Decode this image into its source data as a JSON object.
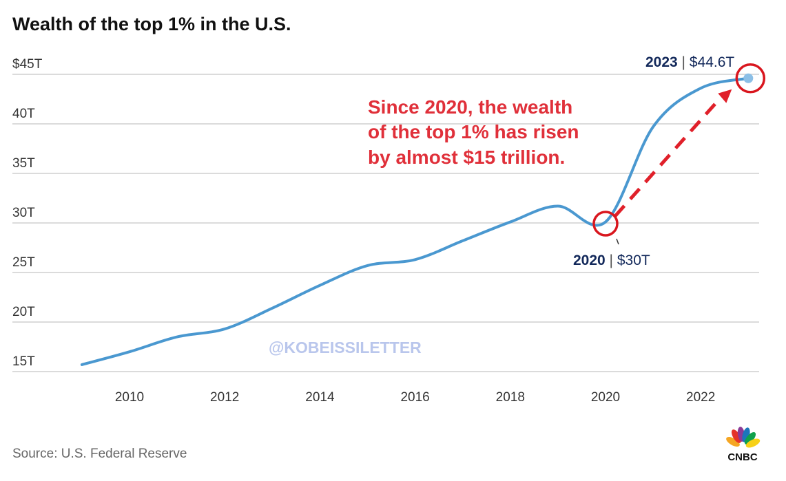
{
  "chart_data": {
    "type": "line",
    "title": "Wealth of the top 1% in the U.S.",
    "xlabel": "",
    "ylabel": "",
    "x": [
      2009,
      2010,
      2011,
      2012,
      2013,
      2014,
      2015,
      2016,
      2017,
      2018,
      2019,
      2020,
      2021,
      2022,
      2023
    ],
    "series": [
      {
        "name": "Wealth of the top 1%",
        "values": [
          15.7,
          17.0,
          18.5,
          19.3,
          21.4,
          23.7,
          25.7,
          26.3,
          28.2,
          30.1,
          31.7,
          30.1,
          39.7,
          43.6,
          44.6
        ],
        "color": "#4a98d0"
      }
    ],
    "xlim": [
      2009,
      2023
    ],
    "ylim": [
      15,
      45
    ],
    "x_ticks": [
      {
        "value": 2010,
        "label": "2010"
      },
      {
        "value": 2012,
        "label": "2012"
      },
      {
        "value": 2014,
        "label": "2014"
      },
      {
        "value": 2016,
        "label": "2016"
      },
      {
        "value": 2018,
        "label": "2018"
      },
      {
        "value": 2020,
        "label": "2020"
      },
      {
        "value": 2022,
        "label": "2022"
      }
    ],
    "y_ticks": [
      {
        "value": 15,
        "label": "15T"
      },
      {
        "value": 20,
        "label": "20T"
      },
      {
        "value": 25,
        "label": "25T"
      },
      {
        "value": 30,
        "label": "30T"
      },
      {
        "value": 35,
        "label": "35T"
      },
      {
        "value": 40,
        "label": "40T"
      },
      {
        "value": 45,
        "label": "$45T"
      }
    ],
    "grid": true,
    "annotations": {
      "start": {
        "year": "2020",
        "value": "$30T",
        "x": 2020,
        "y": 30
      },
      "end": {
        "year": "2023",
        "value": "$44.6T",
        "x": 2023,
        "y": 44.6
      },
      "callout_lines": [
        "Since 2020, the wealth",
        "of the top 1% has risen",
        "by almost $15 trillion."
      ],
      "callout_color": "#e0202a"
    },
    "watermark": "@KOBEISSILETTER",
    "source": "Source: U.S. Federal Reserve",
    "logo": "CNBC"
  }
}
